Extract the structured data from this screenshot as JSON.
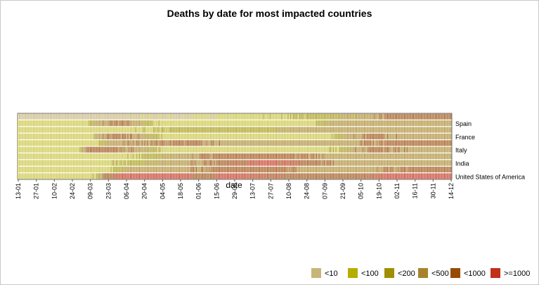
{
  "chart_data": {
    "type": "heatmap",
    "title": "Deaths by date for most impacted countries",
    "xlabel": "date",
    "ylabel": "",
    "x_ticks": [
      "13-01",
      "27-01",
      "10-02",
      "24-02",
      "09-03",
      "23-03",
      "06-04",
      "20-04",
      "04-05",
      "18-05",
      "01-06",
      "15-06",
      "29-06",
      "13-07",
      "27-07",
      "10-08",
      "24-08",
      "07-09",
      "21-09",
      "05-10",
      "19-10",
      "02-11",
      "16-11",
      "30-11",
      "14-12"
    ],
    "rows": [
      {
        "label": "",
        "profile": [
          [
            0,
            0
          ],
          [
            150,
            0
          ],
          [
            380,
            1
          ],
          [
            480,
            2
          ],
          [
            560,
            3
          ],
          [
            610,
            4
          ],
          [
            700,
            4
          ]
        ]
      },
      {
        "label": "Spain",
        "profile": [
          [
            0,
            1
          ],
          [
            110,
            1
          ],
          [
            124,
            3
          ],
          [
            160,
            4
          ],
          [
            190,
            3
          ],
          [
            230,
            1
          ],
          [
            470,
            1
          ],
          [
            510,
            3
          ],
          [
            560,
            3
          ],
          [
            700,
            3
          ]
        ]
      },
      {
        "label": "",
        "profile": [
          [
            0,
            1
          ],
          [
            170,
            1
          ],
          [
            260,
            2
          ],
          [
            400,
            2
          ],
          [
            460,
            3
          ],
          [
            560,
            3
          ],
          [
            700,
            3
          ]
        ]
      },
      {
        "label": "France",
        "profile": [
          [
            0,
            1
          ],
          [
            115,
            1
          ],
          [
            130,
            3
          ],
          [
            160,
            4
          ],
          [
            200,
            3
          ],
          [
            240,
            1
          ],
          [
            500,
            1
          ],
          [
            530,
            3
          ],
          [
            570,
            4
          ],
          [
            620,
            3
          ],
          [
            700,
            3
          ]
        ]
      },
      {
        "label": "",
        "profile": [
          [
            0,
            1
          ],
          [
            125,
            1
          ],
          [
            150,
            3
          ],
          [
            260,
            4
          ],
          [
            340,
            3
          ],
          [
            420,
            3
          ],
          [
            520,
            3
          ],
          [
            600,
            4
          ],
          [
            700,
            4
          ]
        ]
      },
      {
        "label": "Italy",
        "profile": [
          [
            0,
            1
          ],
          [
            95,
            1
          ],
          [
            110,
            4
          ],
          [
            150,
            4
          ],
          [
            200,
            3
          ],
          [
            240,
            1
          ],
          [
            500,
            1
          ],
          [
            540,
            3
          ],
          [
            580,
            4
          ],
          [
            640,
            3
          ],
          [
            700,
            3
          ]
        ]
      },
      {
        "label": "",
        "profile": [
          [
            0,
            1
          ],
          [
            170,
            1
          ],
          [
            250,
            3
          ],
          [
            330,
            4
          ],
          [
            420,
            4
          ],
          [
            520,
            3
          ],
          [
            600,
            3
          ],
          [
            700,
            3
          ]
        ]
      },
      {
        "label": "India",
        "profile": [
          [
            0,
            1
          ],
          [
            135,
            1
          ],
          [
            250,
            3
          ],
          [
            330,
            4
          ],
          [
            400,
            5
          ],
          [
            470,
            4
          ],
          [
            540,
            3
          ],
          [
            620,
            3
          ],
          [
            700,
            3
          ]
        ]
      },
      {
        "label": "",
        "profile": [
          [
            0,
            1
          ],
          [
            140,
            1
          ],
          [
            180,
            3
          ],
          [
            260,
            3
          ],
          [
            330,
            4
          ],
          [
            410,
            4
          ],
          [
            480,
            3
          ],
          [
            560,
            3
          ],
          [
            640,
            4
          ],
          [
            700,
            4
          ]
        ]
      },
      {
        "label": "United States of America",
        "profile": [
          [
            0,
            1
          ],
          [
            120,
            1
          ],
          [
            140,
            4
          ],
          [
            165,
            5
          ],
          [
            260,
            5
          ],
          [
            300,
            4
          ],
          [
            350,
            5
          ],
          [
            440,
            4
          ],
          [
            550,
            4
          ],
          [
            600,
            5
          ],
          [
            700,
            5
          ]
        ]
      }
    ],
    "legend": {
      "placement": "bottom-right",
      "items": [
        {
          "label": "<10",
          "color": "#c8b57a"
        },
        {
          "label": "<100",
          "color": "#b5ae00"
        },
        {
          "label": "<200",
          "color": "#9f8f00"
        },
        {
          "label": "<500",
          "color": "#a7822a"
        },
        {
          "label": "<1000",
          "color": "#974c00"
        },
        {
          "label": ">=1000",
          "color": "#c1301a"
        }
      ]
    },
    "palette": [
      "#c8b57a",
      "#c9c440",
      "#a59a10",
      "#aa8a30",
      "#9c5010",
      "#c23520"
    ]
  }
}
